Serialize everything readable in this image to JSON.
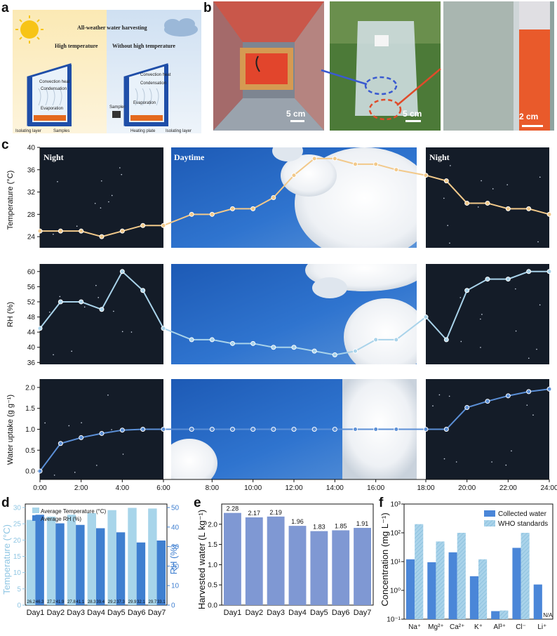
{
  "panels": [
    "a",
    "b",
    "c",
    "d",
    "e",
    "f"
  ],
  "panel_a": {
    "title": "All-weather water harvesting",
    "left_title": "High temperature",
    "right_title": "Without high temperature",
    "labels_left": [
      "Convection heat",
      "Condensation",
      "Evaporation",
      "Isolating layer",
      "Samples"
    ],
    "labels_right": [
      "Convection heat",
      "Condensation",
      "Evaporation",
      "Sampler",
      "Heating plate",
      "Isolating layer"
    ]
  },
  "panel_b": {
    "scale_bars": [
      "5 cm",
      "5 cm",
      "2 cm"
    ]
  },
  "panel_c": {
    "time_labels": [
      "Night",
      "Daytime",
      "Night"
    ],
    "x_ticks": [
      "0:00",
      "2:00",
      "4:00",
      "6:00",
      "8:00",
      "10:00",
      "12:00",
      "14:00",
      "16:00",
      "18:00",
      "20:00",
      "22:00",
      "24:00"
    ],
    "temp_ylabel": "Temperature (°C)",
    "rh_ylabel": "RH (%)",
    "wu_ylabel": "Water uptake (g g⁻¹)",
    "temp_ticks": [
      "24",
      "28",
      "32",
      "36",
      "40"
    ],
    "rh_ticks": [
      "36",
      "40",
      "44",
      "48",
      "52",
      "56",
      "60"
    ],
    "wu_ticks": [
      "0.0",
      "0.5",
      "1.0",
      "1.5",
      "2.0"
    ]
  },
  "panel_d": {
    "legend": [
      "Average Temperature (°C)",
      "Average RH (%)"
    ],
    "ylabel_left": "Temperature (°C)",
    "ylabel_right": "RH (%)",
    "left_ticks": [
      "0",
      "5",
      "10",
      "15",
      "20",
      "25",
      "30"
    ],
    "right_ticks": [
      "0",
      "10",
      "20",
      "30",
      "40",
      "50"
    ]
  },
  "panel_e": {
    "ylabel": "Harvested water (L kg⁻¹)",
    "ticks": [
      "0.0",
      "0.5",
      "1.0",
      "1.5",
      "2.0"
    ]
  },
  "panel_f": {
    "legend": [
      "Collected water",
      "WHO standards"
    ],
    "ylabel": "Concentration (mg L⁻¹)",
    "ticks": [
      "10⁻¹",
      "10⁰",
      "10¹",
      "10²",
      "10³"
    ],
    "na_label": "N/A"
  },
  "chart_data": [
    {
      "type": "line",
      "title": "",
      "xlabel": "",
      "ylabel": "Temperature (°C)",
      "x": [
        0,
        1,
        2,
        3,
        4,
        5,
        6,
        7,
        8,
        9,
        10,
        11,
        12,
        13,
        14,
        15,
        16,
        17,
        18,
        19,
        20,
        21,
        22,
        23,
        24
      ],
      "y": [
        25,
        25,
        25,
        24,
        25,
        26,
        26,
        28,
        28,
        29,
        29,
        31,
        35,
        38,
        38,
        37,
        37,
        36,
        35,
        34,
        30,
        30,
        29,
        29,
        28
      ],
      "ylim": [
        22,
        40
      ],
      "xlim": [
        0,
        24
      ],
      "color": "#f2c98a"
    },
    {
      "type": "line",
      "title": "",
      "xlabel": "",
      "ylabel": "RH (%)",
      "x": [
        0,
        1,
        2,
        3,
        4,
        5,
        6,
        7,
        8,
        9,
        10,
        11,
        12,
        13,
        14,
        15,
        16,
        17,
        18,
        19,
        20,
        21,
        22,
        23,
        24
      ],
      "y": [
        45,
        52,
        52,
        50,
        60,
        55,
        45,
        42,
        42,
        41,
        41,
        40,
        40,
        39,
        38,
        39,
        42,
        42,
        48,
        42,
        55,
        58,
        58,
        60,
        60
      ],
      "ylim": [
        35.5,
        62
      ],
      "xlim": [
        0,
        24
      ],
      "color": "#a9d3ea"
    },
    {
      "type": "line",
      "title": "",
      "xlabel": "",
      "ylabel": "Water uptake (g g⁻¹)",
      "x": [
        0,
        1,
        2,
        3,
        4,
        5,
        6,
        7,
        8,
        9,
        10,
        11,
        12,
        13,
        14,
        15,
        16,
        17,
        18,
        19,
        20,
        21,
        22,
        23,
        24
      ],
      "y": [
        0.0,
        0.66,
        0.8,
        0.9,
        0.98,
        1.0,
        1.0,
        1.0,
        1.0,
        1.0,
        1.0,
        1.0,
        1.0,
        1.0,
        1.0,
        1.0,
        1.0,
        1.0,
        1.0,
        1.0,
        1.52,
        1.67,
        1.8,
        1.9,
        1.96
      ],
      "ylim": [
        -0.2,
        2.2
      ],
      "xlim": [
        0,
        24
      ],
      "color": "#5b8fd6"
    },
    {
      "type": "bar",
      "title": "",
      "xlabel": "",
      "ylabel": "Temperature (°C)",
      "categories": [
        "Day1",
        "Day2",
        "Day3",
        "Day4",
        "Day5",
        "Day6",
        "Day7"
      ],
      "series": [
        {
          "name": "Average Temperature (°C)",
          "axis": "left",
          "values": [
            26.2,
            27.2,
            27.8,
            28.3,
            29.2,
            29.9,
            29.7
          ],
          "color": "#a8d5ea"
        },
        {
          "name": "Average RH (%)",
          "axis": "right",
          "values": [
            46.3,
            41.9,
            41.1,
            39.4,
            37.3,
            32.1,
            33.1
          ],
          "color": "#3f7fd0"
        }
      ],
      "ylim": [
        0,
        30
      ],
      "ylim_right": [
        0,
        50
      ]
    },
    {
      "type": "bar",
      "title": "",
      "xlabel": "",
      "ylabel": "Harvested water (L kg⁻¹)",
      "categories": [
        "Day1",
        "Day2",
        "Day3",
        "Day4",
        "Day5",
        "Day6",
        "Day7"
      ],
      "values": [
        2.28,
        2.17,
        2.19,
        1.96,
        1.83,
        1.85,
        1.91
      ],
      "ylim": [
        0,
        2.5
      ],
      "color": "#7f98d3"
    },
    {
      "type": "bar",
      "title": "",
      "xlabel": "",
      "ylabel": "Concentration (mg L⁻¹)",
      "categories": [
        "Na⁺",
        "Mg²⁺",
        "Ca²⁺",
        "K⁺",
        "Al³⁺",
        "Cl⁻",
        "Li⁺"
      ],
      "series": [
        {
          "name": "Collected water",
          "values": [
            12,
            9.5,
            21,
            3.1,
            0.19,
            30,
            1.6
          ],
          "color": "#4a86d8"
        },
        {
          "name": "WHO standards",
          "values": [
            200,
            50,
            100,
            12,
            0.2,
            100,
            null
          ],
          "color": "#a9d3ea"
        }
      ],
      "log_scale": true,
      "ylim": [
        0.1,
        1000
      ]
    }
  ]
}
